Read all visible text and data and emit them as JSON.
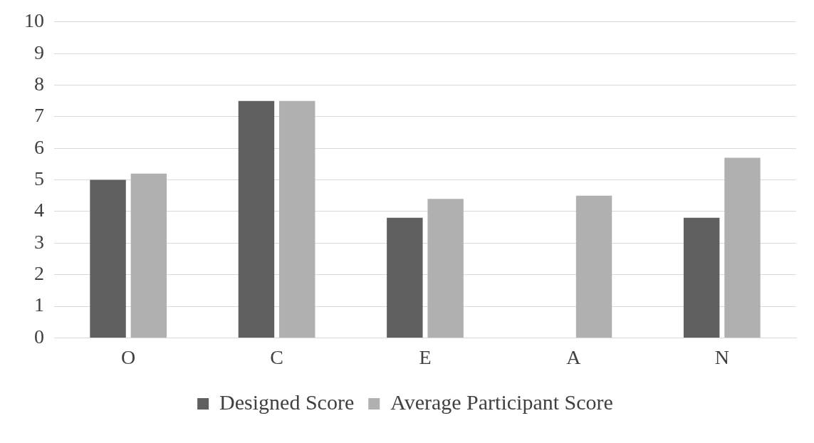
{
  "chart_data": {
    "type": "bar",
    "categories": [
      "O",
      "C",
      "E",
      "A",
      "N"
    ],
    "series": [
      {
        "name": "Designed Score",
        "color": "#5f5f5f",
        "values": [
          5.0,
          7.5,
          3.8,
          null,
          3.8
        ]
      },
      {
        "name": "Average Participant Score",
        "color": "#b0b0b0",
        "values": [
          5.2,
          7.5,
          4.4,
          4.5,
          5.7
        ]
      }
    ],
    "ylim": [
      0,
      10
    ],
    "yticks": [
      0,
      1,
      2,
      3,
      4,
      5,
      6,
      7,
      8,
      9,
      10
    ],
    "grid": "y",
    "legend": "bottom"
  }
}
